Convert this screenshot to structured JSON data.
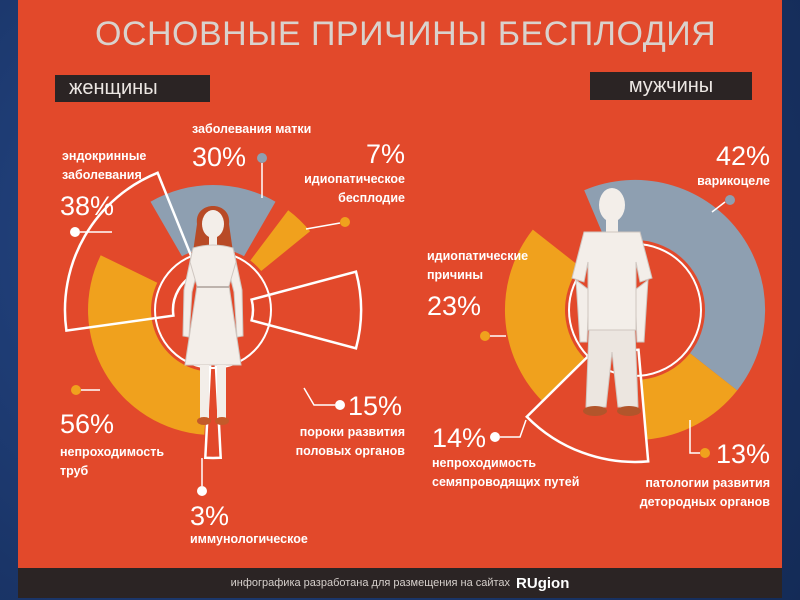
{
  "title": "ОСНОВНЫЕ ПРИЧИНЫ БЕСПЛОДИЯ",
  "footer": {
    "text": "инфографика разработана для размещения на сайтах",
    "brand": "RUgion"
  },
  "colors": {
    "panel": "#e2492b",
    "page_border": "#1d3c75",
    "header_bar": "#2b2424",
    "title": "#d9d2cd",
    "grey_blue": "#8e9fb1",
    "gold": "#f0a11d",
    "outline": "#ffffff"
  },
  "chart_data": [
    {
      "type": "pie",
      "title": "женщины",
      "unit": "%",
      "categories": [
        "заболевания матки",
        "идиопатическое\nбесплодие",
        "пороки развития\nполовых органов",
        "иммунологическое",
        "непроходимость\nтруб",
        "эндокринные\nзаболевания"
      ],
      "values": [
        30,
        7,
        15,
        3,
        56,
        38
      ],
      "colors": [
        "#8e9fb1",
        "#f0a11d",
        "#ffffff",
        "#ffffff",
        "#f0a11d",
        "#ffffff"
      ]
    },
    {
      "type": "pie",
      "title": "мужчины",
      "unit": "%",
      "categories": [
        "варикоцеле",
        "патологии развития\nдетородных органов",
        "непроходимость\nсемяпроводящих путей",
        "идиопатические\nпричины"
      ],
      "values": [
        42,
        13,
        14,
        23
      ],
      "colors": [
        "#8e9fb1",
        "#f0a11d",
        "#ffffff",
        "#f0a11d"
      ]
    }
  ]
}
